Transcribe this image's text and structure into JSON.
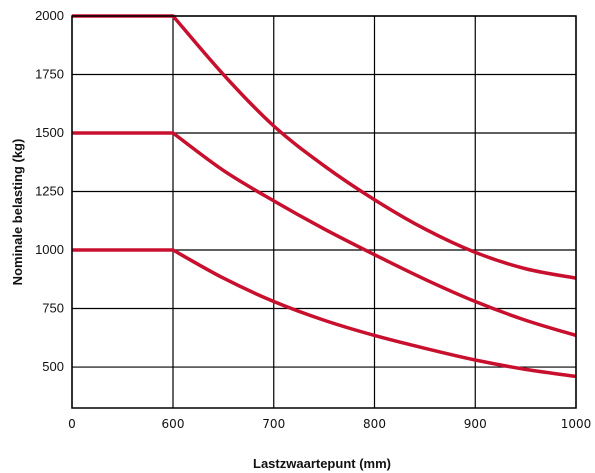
{
  "chart_data": {
    "type": "line",
    "title": "",
    "xlabel": "Lastzwaartepunt (mm)",
    "ylabel": "Nominale belasting (kg)",
    "x_ticks": [
      0,
      600,
      700,
      800,
      900,
      1000
    ],
    "x_tick_labels": [
      "0",
      "600",
      "700",
      "800",
      "900",
      "1000"
    ],
    "y_ticks": [
      500,
      750,
      1000,
      1250,
      1500,
      1750,
      2000
    ],
    "y_tick_labels": [
      "500",
      "750",
      "1000",
      "1250",
      "1500",
      "1750",
      "2000"
    ],
    "ylim": [
      325,
      2000
    ],
    "grid": true,
    "legend": "none",
    "line_color": "#c8102e",
    "series": [
      {
        "x": [
          0,
          600,
          650,
          700,
          750,
          800,
          850,
          900,
          950,
          1000
        ],
        "y": [
          2000,
          2000,
          1750,
          1530,
          1360,
          1215,
          1090,
          990,
          920,
          880
        ]
      },
      {
        "x": [
          0,
          600,
          650,
          700,
          750,
          800,
          850,
          900,
          950,
          1000
        ],
        "y": [
          1500,
          1500,
          1340,
          1210,
          1090,
          980,
          875,
          780,
          700,
          635
        ]
      },
      {
        "x": [
          0,
          600,
          650,
          700,
          750,
          800,
          850,
          900,
          950,
          1000
        ],
        "y": [
          1000,
          1000,
          880,
          780,
          700,
          635,
          580,
          530,
          490,
          460
        ]
      }
    ]
  }
}
